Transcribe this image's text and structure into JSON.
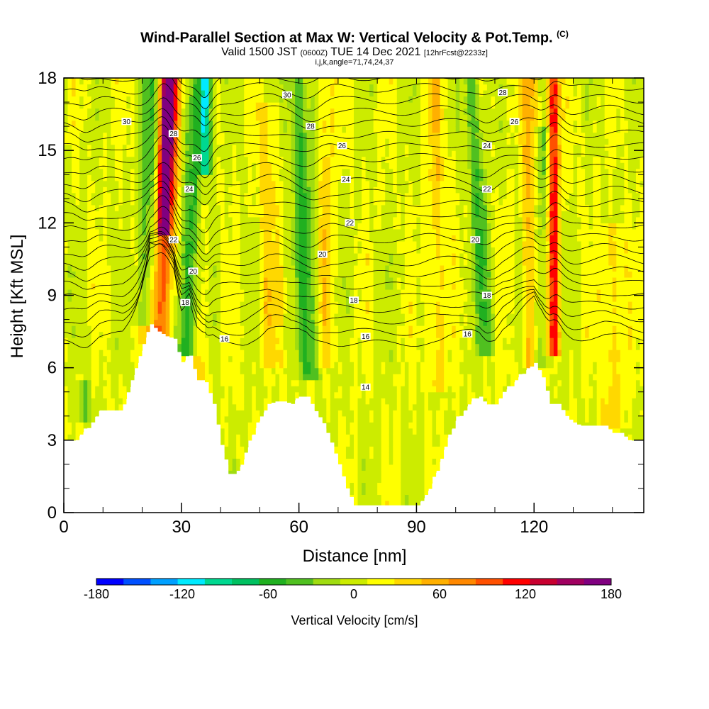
{
  "header": {
    "title": "Wind-Parallel Section at Max W: Vertical Velocity & Pot.Temp.",
    "copyright": "(C)",
    "valid_prefix": "Valid 1500 JST",
    "valid_utc": "(0600Z)",
    "valid_date": "TUE 14 Dec 2021",
    "forecast": "[12hrFcst@2233z]",
    "indices": "i,j,k,angle=71,74,24,37"
  },
  "chart_data": {
    "type": "heatmap",
    "title": "Wind-Parallel Section at Max W: Vertical Velocity & Pot.Temp.",
    "xlabel": "Distance [nm]",
    "ylabel": "Height [Kft MSL]",
    "xlim": [
      0,
      148
    ],
    "ylim": [
      0,
      18
    ],
    "x_ticks": [
      0,
      30,
      60,
      90,
      120
    ],
    "y_ticks": [
      0,
      3,
      6,
      9,
      12,
      15,
      18
    ],
    "grid": false,
    "colorbar": {
      "label": "Vertical Velocity [cm/s]",
      "range": [
        -180,
        180
      ],
      "tick_labels": [
        "-180",
        "-120",
        "-60",
        "0",
        "60",
        "120",
        "180"
      ],
      "colors": [
        "#0000ff",
        "#0050ff",
        "#00a0ff",
        "#00eaff",
        "#00d890",
        "#00c060",
        "#20b020",
        "#50c020",
        "#a0dc10",
        "#ccec00",
        "#ffff00",
        "#ffd800",
        "#ffb000",
        "#ff8800",
        "#ff5000",
        "#ff0000",
        "#c80030",
        "#a00060",
        "#800080"
      ]
    },
    "terrain": {
      "x": [
        0,
        3,
        6,
        9,
        12,
        15,
        18,
        20,
        22,
        24,
        26,
        28,
        30,
        32,
        34,
        36,
        38,
        40,
        42,
        44,
        46,
        48,
        50,
        52,
        54,
        56,
        58,
        60,
        62,
        64,
        66,
        68,
        70,
        72,
        74,
        76,
        78,
        80,
        82,
        84,
        86,
        88,
        90,
        92,
        94,
        96,
        98,
        100,
        102,
        104,
        106,
        108,
        110,
        112,
        114,
        116,
        118,
        120,
        122,
        124,
        126,
        128,
        130,
        132,
        134,
        136,
        138,
        140,
        142,
        144,
        146,
        148
      ],
      "y": [
        2.9,
        3.0,
        3.5,
        4.2,
        4.2,
        4.2,
        5.7,
        6.7,
        7.8,
        7.5,
        7.3,
        7.2,
        6.1,
        6.5,
        5.4,
        5.4,
        4.5,
        2.8,
        1.6,
        1.6,
        2.2,
        3.2,
        3.8,
        4.5,
        4.6,
        4.6,
        4.5,
        4.8,
        4.8,
        4.2,
        3.7,
        2.9,
        2.0,
        1.0,
        0.3,
        0.3,
        0.3,
        0.3,
        0.3,
        0.3,
        0.3,
        0.3,
        0.3,
        0.6,
        1.2,
        2.1,
        3.1,
        3.8,
        4.2,
        4.6,
        4.8,
        4.4,
        4.4,
        5.0,
        5.2,
        5.6,
        5.9,
        6.2,
        5.6,
        4.5,
        4.5,
        4.0,
        3.7,
        3.6,
        3.6,
        3.6,
        3.6,
        3.3,
        3.3,
        3.0,
        2.9,
        2.9
      ]
    },
    "updraft_bands": [
      {
        "x": 24,
        "width": 3,
        "ybot": 7.0,
        "ytop": 18,
        "w": 100,
        "tilt": 1.0
      },
      {
        "x": 25.5,
        "width": 1.5,
        "ybot": 11.5,
        "ytop": 18,
        "w": 125,
        "tilt": 0.5
      },
      {
        "x": 35,
        "width": 1.5,
        "ybot": 5.5,
        "ytop": 18,
        "w": 40,
        "tilt": 0
      },
      {
        "x": 52,
        "width": 2.5,
        "ybot": 6.0,
        "ytop": 17,
        "w": 30,
        "tilt": 0
      },
      {
        "x": 67,
        "width": 2,
        "ybot": 6.0,
        "ytop": 18,
        "w": 30,
        "tilt": 0
      },
      {
        "x": 95,
        "width": 2.5,
        "ybot": 5.0,
        "ytop": 18,
        "w": 30,
        "tilt": 0
      },
      {
        "x": 119,
        "width": 2,
        "ybot": 6.0,
        "ytop": 18,
        "w": 45,
        "tilt": 0
      },
      {
        "x": 125,
        "width": 1.5,
        "ybot": 6.5,
        "ytop": 18,
        "w": 110,
        "tilt": 0
      },
      {
        "x": 140,
        "width": 3,
        "ybot": 3.5,
        "ytop": 12,
        "w": 30,
        "tilt": 0
      }
    ],
    "downdraft_bands": [
      {
        "x": 21,
        "width": 2.5,
        "ybot": 7.8,
        "ytop": 18,
        "w": -60,
        "tilt": 0.5
      },
      {
        "x": 31,
        "width": 3,
        "ybot": 6.5,
        "ytop": 18,
        "w": -70,
        "tilt": 1.0
      },
      {
        "x": 36,
        "width": 1.2,
        "ybot": 14,
        "ytop": 18,
        "w": -120,
        "tilt": 0
      },
      {
        "x": 63,
        "width": 2.5,
        "ybot": 5.5,
        "ytop": 18,
        "w": -60,
        "tilt": -0.8
      },
      {
        "x": 108,
        "width": 2,
        "ybot": 6.5,
        "ytop": 18,
        "w": -55,
        "tilt": -1.0
      },
      {
        "x": 122,
        "width": 2,
        "ybot": 6.0,
        "ytop": 16,
        "w": -40,
        "tilt": 0
      },
      {
        "x": 5.5,
        "width": 1.5,
        "ybot": 3.8,
        "ytop": 5.5,
        "w": -40,
        "tilt": 0
      }
    ],
    "theta_contours": {
      "interval": 1,
      "levels": [
        9,
        10,
        11,
        12,
        13,
        14,
        15,
        16,
        17,
        18,
        19,
        20,
        21,
        22,
        23,
        24,
        25,
        26,
        27,
        28,
        29,
        30,
        31,
        32
      ],
      "labels": [
        {
          "text": "14",
          "x": 77,
          "y": 5.2
        },
        {
          "text": "16",
          "x": 41,
          "y": 7.2
        },
        {
          "text": "16",
          "x": 77,
          "y": 7.3
        },
        {
          "text": "16",
          "x": 103,
          "y": 7.4
        },
        {
          "text": "18",
          "x": 31,
          "y": 8.7
        },
        {
          "text": "18",
          "x": 74,
          "y": 8.8
        },
        {
          "text": "18",
          "x": 108,
          "y": 9.0
        },
        {
          "text": "20",
          "x": 33,
          "y": 10.0
        },
        {
          "text": "20",
          "x": 66,
          "y": 10.7
        },
        {
          "text": "20",
          "x": 105,
          "y": 11.3
        },
        {
          "text": "22",
          "x": 28,
          "y": 11.3
        },
        {
          "text": "22",
          "x": 73,
          "y": 12.0
        },
        {
          "text": "22",
          "x": 108,
          "y": 13.4
        },
        {
          "text": "24",
          "x": 32,
          "y": 13.4
        },
        {
          "text": "24",
          "x": 72,
          "y": 13.8
        },
        {
          "text": "24",
          "x": 108,
          "y": 15.2
        },
        {
          "text": "26",
          "x": 34,
          "y": 14.7
        },
        {
          "text": "26",
          "x": 71,
          "y": 15.2
        },
        {
          "text": "26",
          "x": 115,
          "y": 16.2
        },
        {
          "text": "28",
          "x": 28,
          "y": 15.7
        },
        {
          "text": "28",
          "x": 63,
          "y": 16.0
        },
        {
          "text": "28",
          "x": 112,
          "y": 17.4
        },
        {
          "text": "30",
          "x": 16,
          "y": 16.2
        },
        {
          "text": "30",
          "x": 57,
          "y": 17.3
        }
      ]
    }
  }
}
